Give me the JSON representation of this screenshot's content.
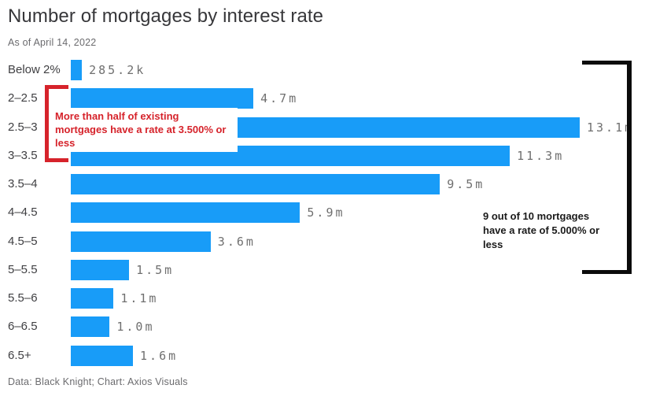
{
  "header": {
    "title": "Number of mortgages by interest rate",
    "subtitle": "As of April 14, 2022"
  },
  "chart_data": {
    "type": "bar",
    "orientation": "horizontal",
    "title": "Number of mortgages by interest rate",
    "categories": [
      "Below 2%",
      "2–2.5",
      "2.5–3",
      "3–3.5",
      "3.5–4",
      "4–4.5",
      "4.5–5",
      "5–5.5",
      "5.5–6",
      "6–6.5",
      "6.5+"
    ],
    "values_millions": [
      0.2852,
      4.7,
      13.1,
      11.3,
      9.5,
      5.9,
      3.6,
      1.5,
      1.1,
      1.0,
      1.6
    ],
    "value_labels": [
      "285.2k",
      "4.7m",
      "13.1m",
      "11.3m",
      "9.5m",
      "5.9m",
      "3.6m",
      "1.5m",
      "1.1m",
      "1.0m",
      "1.6m"
    ],
    "xlabel": "",
    "ylabel": "",
    "xlim_millions": [
      0,
      13.1
    ],
    "grid": false,
    "legend": false,
    "bar_color": "#189cf8"
  },
  "annotations": {
    "left_callout": {
      "text": "More than half of existing mortgages have a rate at 3.500% or less",
      "color": "#d6232b"
    },
    "right_callout": {
      "text": "9 out of 10 mortgages have a rate of 5.000% or less",
      "color": "#1a1a1a",
      "bracket_color": "#0b0b0b"
    }
  },
  "footer": {
    "credit": "Data: Black Knight; Chart: Axios Visuals"
  },
  "colors": {
    "bar": "#189cf8",
    "value_label": "#6f6f6f",
    "category_label": "#3f3f42",
    "title": "#37373a",
    "muted": "#6b6b6e",
    "red_accent": "#d6232b",
    "black_accent": "#0b0b0b"
  }
}
